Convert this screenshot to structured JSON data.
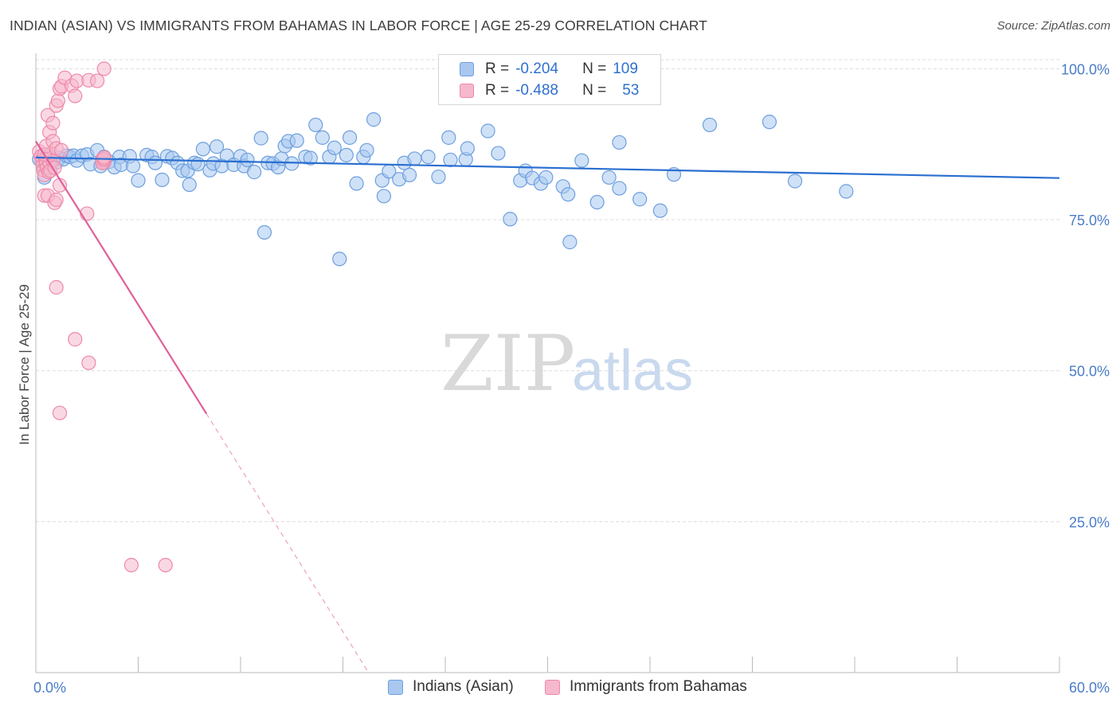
{
  "title": "INDIAN (ASIAN) VS IMMIGRANTS FROM BAHAMAS IN LABOR FORCE | AGE 25-29 CORRELATION CHART",
  "source": "Source: ZipAtlas.com",
  "watermark": {
    "zip": "ZIP",
    "atlas": "atlas"
  },
  "colors": {
    "blue_fill": "#a8c8f0",
    "blue_stroke": "#6e9fde",
    "blue_line": "#2a6fd0",
    "pink_fill": "#f6b8cc",
    "pink_stroke": "#ee89a9",
    "pink_line": "#e0609a",
    "tick_text": "#4a7cc9",
    "grid": "#dcdcdc"
  },
  "legend": {
    "r_label": "R =",
    "n_label": "N =",
    "series": [
      {
        "name": "Indians (Asian)",
        "r": "-0.204",
        "n": "109"
      },
      {
        "name": "Immigrants from Bahamas",
        "r": "-0.488",
        "n": "53"
      }
    ]
  },
  "chart_data": {
    "type": "scatter",
    "title": "INDIAN (ASIAN) VS IMMIGRANTS FROM BAHAMAS IN LABOR FORCE | AGE 25-29 CORRELATION CHART",
    "xlabel": "",
    "ylabel": "In Labor Force | Age 25-29",
    "xlim": [
      0,
      60
    ],
    "ylim": [
      0,
      101.5
    ],
    "x_tick_labels": [
      {
        "value": 0,
        "label": "0.0%"
      },
      {
        "value": 60,
        "label": "60.0%"
      }
    ],
    "y_tick_labels": [
      {
        "value": 100,
        "label": "100.0%"
      },
      {
        "value": 75,
        "label": "75.0%"
      },
      {
        "value": 50,
        "label": "50.0%"
      },
      {
        "value": 25,
        "label": "25.0%"
      }
    ],
    "x_minor_ticks": [
      0,
      6,
      12,
      18,
      24,
      30,
      36,
      42,
      48,
      54,
      60
    ],
    "series": [
      {
        "name": "Indians (Asian)",
        "trend": {
          "x0": 0,
          "y0": 85.3,
          "x1": 60,
          "y1": 81.9,
          "dashed_from": null
        },
        "points": [
          [
            0.2,
            85.0
          ],
          [
            0.4,
            84.5
          ],
          [
            0.6,
            84.0
          ],
          [
            0.7,
            85.5
          ],
          [
            0.8,
            84.8
          ],
          [
            1.0,
            85.0
          ],
          [
            1.2,
            84.5
          ],
          [
            1.4,
            85.2
          ],
          [
            1.6,
            85.0
          ],
          [
            1.8,
            85.6
          ],
          [
            2.0,
            85.4
          ],
          [
            2.2,
            85.6
          ],
          [
            2.4,
            84.8
          ],
          [
            2.7,
            85.6
          ],
          [
            3.0,
            85.8
          ],
          [
            3.2,
            84.2
          ],
          [
            3.6,
            86.5
          ],
          [
            3.8,
            83.9
          ],
          [
            4.0,
            85.4
          ],
          [
            4.3,
            84.6
          ],
          [
            4.6,
            83.7
          ],
          [
            4.9,
            85.4
          ],
          [
            5.0,
            84.1
          ],
          [
            5.5,
            85.5
          ],
          [
            5.7,
            83.9
          ],
          [
            6.0,
            81.5
          ],
          [
            6.5,
            85.7
          ],
          [
            6.8,
            85.4
          ],
          [
            7.0,
            84.4
          ],
          [
            7.4,
            81.6
          ],
          [
            7.7,
            85.5
          ],
          [
            8.0,
            85.2
          ],
          [
            8.3,
            84.4
          ],
          [
            8.6,
            83.1
          ],
          [
            8.9,
            83.1
          ],
          [
            9.0,
            80.8
          ],
          [
            9.3,
            84.4
          ],
          [
            9.5,
            84.2
          ],
          [
            9.8,
            86.7
          ],
          [
            10.2,
            83.2
          ],
          [
            10.4,
            84.3
          ],
          [
            10.6,
            87.1
          ],
          [
            10.9,
            83.9
          ],
          [
            11.2,
            85.6
          ],
          [
            11.6,
            84.1
          ],
          [
            12.0,
            85.5
          ],
          [
            12.2,
            83.9
          ],
          [
            12.4,
            84.9
          ],
          [
            12.8,
            82.9
          ],
          [
            13.2,
            88.5
          ],
          [
            13.4,
            72.9
          ],
          [
            13.6,
            84.4
          ],
          [
            13.9,
            84.3
          ],
          [
            14.2,
            83.7
          ],
          [
            14.4,
            85.1
          ],
          [
            14.6,
            87.2
          ],
          [
            14.8,
            88.0
          ],
          [
            15.0,
            84.3
          ],
          [
            15.3,
            88.1
          ],
          [
            15.8,
            85.4
          ],
          [
            16.1,
            85.2
          ],
          [
            16.4,
            90.7
          ],
          [
            16.8,
            88.6
          ],
          [
            17.2,
            85.4
          ],
          [
            17.5,
            86.9
          ],
          [
            17.8,
            68.5
          ],
          [
            18.2,
            85.7
          ],
          [
            18.4,
            88.6
          ],
          [
            18.8,
            81.0
          ],
          [
            19.2,
            85.4
          ],
          [
            19.4,
            86.5
          ],
          [
            19.8,
            91.6
          ],
          [
            20.3,
            81.5
          ],
          [
            20.4,
            78.9
          ],
          [
            20.7,
            83.0
          ],
          [
            21.3,
            81.7
          ],
          [
            21.6,
            84.4
          ],
          [
            21.9,
            82.4
          ],
          [
            22.2,
            85.1
          ],
          [
            23.0,
            85.4
          ],
          [
            23.6,
            82.1
          ],
          [
            24.2,
            88.6
          ],
          [
            24.3,
            84.9
          ],
          [
            25.2,
            85.0
          ],
          [
            25.3,
            86.8
          ],
          [
            26.5,
            89.7
          ],
          [
            27.1,
            86.0
          ],
          [
            27.8,
            75.1
          ],
          [
            28.4,
            81.5
          ],
          [
            28.7,
            83.1
          ],
          [
            29.1,
            81.9
          ],
          [
            29.6,
            81.0
          ],
          [
            29.9,
            82.0
          ],
          [
            30.9,
            80.5
          ],
          [
            31.2,
            79.2
          ],
          [
            31.3,
            71.3
          ],
          [
            32.0,
            84.8
          ],
          [
            32.9,
            77.9
          ],
          [
            33.6,
            82.0
          ],
          [
            34.2,
            80.2
          ],
          [
            34.2,
            87.8
          ],
          [
            35.4,
            78.4
          ],
          [
            36.6,
            76.5
          ],
          [
            37.4,
            82.5
          ],
          [
            39.5,
            90.7
          ],
          [
            43.0,
            91.2
          ],
          [
            44.5,
            81.4
          ],
          [
            47.5,
            79.7
          ],
          [
            0.5,
            82.0
          ]
        ]
      },
      {
        "name": "Immigrants from Bahamas",
        "trend": {
          "x0": 0,
          "y0": 88.0,
          "x1": 19.5,
          "y1": 0,
          "dashed_from": 10.0
        },
        "points": [
          [
            0.2,
            86.3
          ],
          [
            0.3,
            85.5
          ],
          [
            0.35,
            84.8
          ],
          [
            0.4,
            84.0
          ],
          [
            0.45,
            83.2
          ],
          [
            0.5,
            82.4
          ],
          [
            0.55,
            85.0
          ],
          [
            0.6,
            84.3
          ],
          [
            0.65,
            83.6
          ],
          [
            0.7,
            85.7
          ],
          [
            0.75,
            82.9
          ],
          [
            0.8,
            84.5
          ],
          [
            0.85,
            83.1
          ],
          [
            0.9,
            86.0
          ],
          [
            1.0,
            84.8
          ],
          [
            1.1,
            83.6
          ],
          [
            0.5,
            85.8
          ],
          [
            0.6,
            87.2
          ],
          [
            0.8,
            89.5
          ],
          [
            0.7,
            92.3
          ],
          [
            1.0,
            91.0
          ],
          [
            1.2,
            93.9
          ],
          [
            1.3,
            94.7
          ],
          [
            1.4,
            96.7
          ],
          [
            1.5,
            97.1
          ],
          [
            1.7,
            98.5
          ],
          [
            2.1,
            97.2
          ],
          [
            2.4,
            98.0
          ],
          [
            2.3,
            95.5
          ],
          [
            3.1,
            98.1
          ],
          [
            3.6,
            98.0
          ],
          [
            4.0,
            100.0
          ],
          [
            1.0,
            88.0
          ],
          [
            1.2,
            86.8
          ],
          [
            1.5,
            86.5
          ],
          [
            1.4,
            80.7
          ],
          [
            0.5,
            79.0
          ],
          [
            0.7,
            79.0
          ],
          [
            1.1,
            77.8
          ],
          [
            1.2,
            78.3
          ],
          [
            3.0,
            76.0
          ],
          [
            1.2,
            63.8
          ],
          [
            2.3,
            55.2
          ],
          [
            3.9,
            84.8
          ],
          [
            4.0,
            84.5
          ],
          [
            3.9,
            85.0
          ],
          [
            3.9,
            84.4
          ],
          [
            4.0,
            85.0
          ],
          [
            4.0,
            85.3
          ],
          [
            1.4,
            43.0
          ],
          [
            3.1,
            51.3
          ],
          [
            5.6,
            17.8
          ],
          [
            7.6,
            17.8
          ]
        ]
      }
    ]
  }
}
